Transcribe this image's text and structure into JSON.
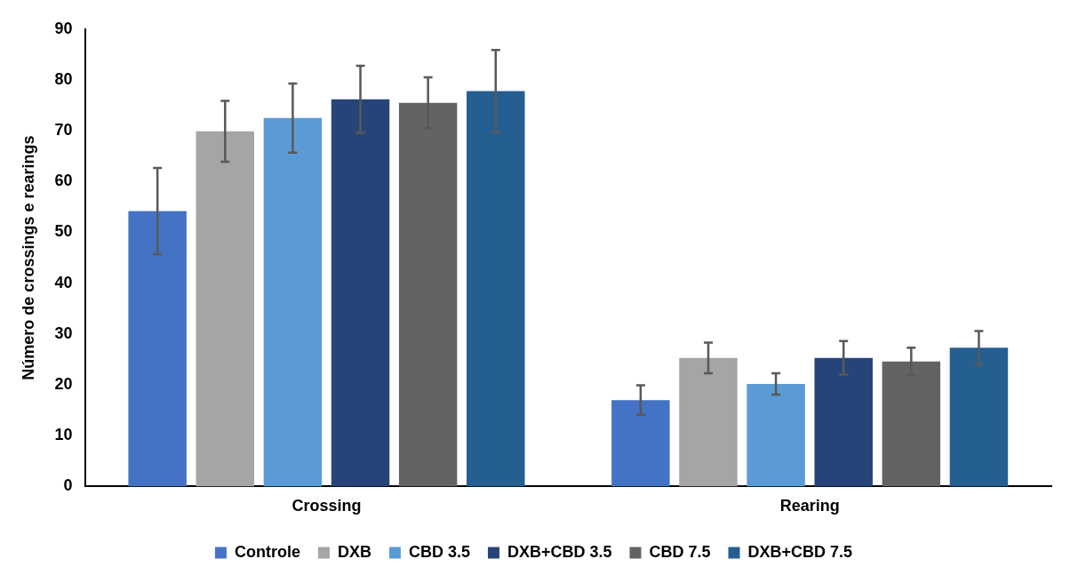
{
  "chart_data": {
    "type": "bar",
    "ylabel": "Número de crossings e rearings",
    "categories": [
      "Crossing",
      "Rearing"
    ],
    "series": [
      {
        "name": "Controle",
        "color": "#4472c4",
        "values": [
          54.2,
          17.0
        ],
        "errors": [
          8.5,
          2.9
        ]
      },
      {
        "name": "DXB",
        "color": "#a5a5a5",
        "values": [
          69.9,
          25.3
        ],
        "errors": [
          6.0,
          3.0
        ]
      },
      {
        "name": "CBD 3.5",
        "color": "#5b9bd5",
        "values": [
          72.5,
          20.2
        ],
        "errors": [
          6.8,
          2.1
        ]
      },
      {
        "name": "DXB+CBD 3.5",
        "color": "#264478",
        "values": [
          76.2,
          25.3
        ],
        "errors": [
          6.6,
          3.3
        ]
      },
      {
        "name": "CBD 7.5",
        "color": "#636363",
        "values": [
          75.5,
          24.6
        ],
        "errors": [
          5.0,
          2.7
        ]
      },
      {
        "name": "DXB+CBD 7.5",
        "color": "#255e91",
        "values": [
          77.8,
          27.3
        ],
        "errors": [
          8.1,
          3.3
        ]
      }
    ],
    "ylim": [
      0,
      90
    ],
    "yticks": [
      0,
      10,
      20,
      30,
      40,
      50,
      60,
      70,
      80,
      90
    ],
    "grid": false,
    "legend": "bottom"
  }
}
